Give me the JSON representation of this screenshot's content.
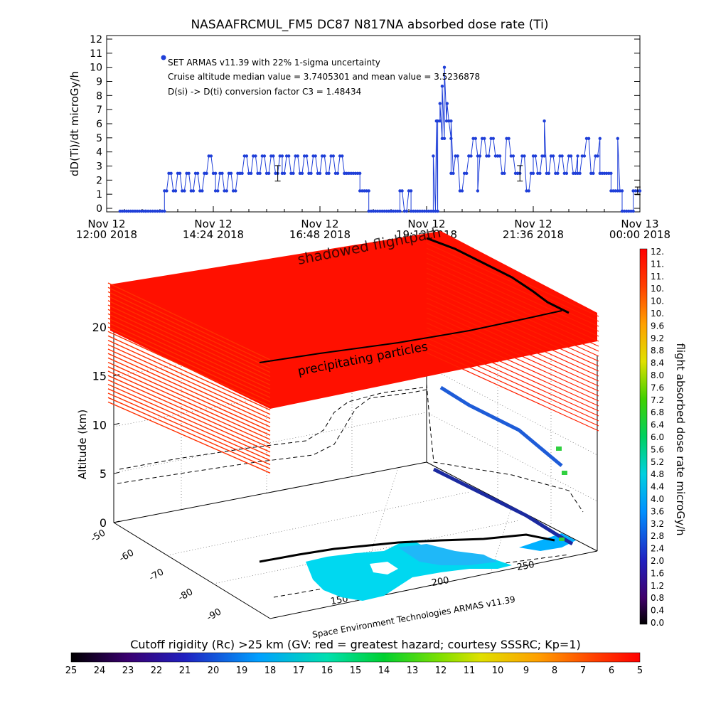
{
  "chart_data": [
    {
      "type": "line",
      "title": "NASAAFRCMUL_FM5 DC87 N817NA absorbed dose rate (Ti)",
      "ylabel": "dD(Ti)/dt microGy/h",
      "ylim": [
        0,
        12
      ],
      "y_ticks": [
        "0",
        "1",
        "2",
        "3",
        "4",
        "5",
        "6",
        "7",
        "8",
        "9",
        "10",
        "11",
        "12"
      ],
      "xlim": [
        12.0,
        24.0
      ],
      "x_ticks": [
        {
          "value": 12.0,
          "line1": "Nov 12",
          "line2": "12:00 2018"
        },
        {
          "value": 14.4,
          "line1": "Nov 12",
          "line2": "14:24 2018"
        },
        {
          "value": 16.8,
          "line1": "Nov 12",
          "line2": "16:48 2018"
        },
        {
          "value": 19.2,
          "line1": "Nov 12",
          "line2": "19:12 2018"
        },
        {
          "value": 21.6,
          "line1": "Nov 12",
          "line2": "21:36 2018"
        },
        {
          "value": 24.0,
          "line1": "Nov 13",
          "line2": "00:00 2018"
        }
      ],
      "annotations": [
        "SET ARMAS v11.39 with 22% 1-sigma uncertainty",
        "Cruise altitude median value = 3.7405301 and mean value = 3.5236878",
        "D(si) -> D(ti) conversion factor C3 = 1.48434"
      ],
      "series": [
        {
          "color": "#1f3fd8",
          "segments": [
            {
              "x0": 12.3,
              "x1": 12.88,
              "levels": [
                -0.2
              ]
            },
            {
              "x0": 12.88,
              "x1": 13.3,
              "levels": [
                -0.2
              ]
            },
            {
              "x0": 13.3,
              "x1": 14.2,
              "levels": [
                1.24,
                2.48
              ]
            },
            {
              "x0": 14.2,
              "x1": 14.45,
              "levels": [
                2.48,
                3.71
              ]
            },
            {
              "x0": 14.45,
              "x1": 15.0,
              "levels": [
                1.24,
                2.48
              ]
            },
            {
              "x0": 15.0,
              "x1": 15.95,
              "levels": [
                2.48,
                3.71
              ]
            },
            {
              "x0": 15.95,
              "x1": 17.35,
              "levels": [
                2.48,
                3.71
              ]
            },
            {
              "x0": 17.35,
              "x1": 17.7,
              "levels": [
                2.48
              ]
            },
            {
              "x0": 17.7,
              "x1": 17.9,
              "levels": [
                1.24
              ]
            },
            {
              "x0": 17.9,
              "x1": 18.6,
              "levels": [
                -0.2
              ]
            },
            {
              "x0": 18.6,
              "x1": 18.85,
              "levels": [
                1.24,
                -0.2
              ]
            },
            {
              "x0": 18.85,
              "x1": 19.45,
              "levels": [
                -0.2
              ]
            },
            {
              "x0": 19.45,
              "x1": 19.75,
              "levels": [
                6.19,
                4.95
              ]
            },
            {
              "x0": 19.75,
              "x1": 20.15,
              "levels": [
                2.48,
                3.71,
                1.24
              ]
            },
            {
              "x0": 20.15,
              "x1": 20.8,
              "levels": [
                3.71,
                4.95
              ]
            },
            {
              "x0": 20.8,
              "x1": 21.25,
              "levels": [
                3.71,
                2.48,
                4.95
              ]
            },
            {
              "x0": 21.25,
              "x1": 21.6,
              "levels": [
                2.48,
                3.71,
                1.24
              ]
            },
            {
              "x0": 21.6,
              "x1": 22.6,
              "levels": [
                3.71,
                2.48
              ]
            },
            {
              "x0": 22.6,
              "x1": 23.1,
              "levels": [
                2.48,
                3.71,
                4.95
              ]
            },
            {
              "x0": 23.1,
              "x1": 23.35,
              "levels": [
                2.48
              ]
            },
            {
              "x0": 23.35,
              "x1": 23.6,
              "levels": [
                1.24
              ]
            },
            {
              "x0": 23.6,
              "x1": 23.85,
              "levels": [
                -0.2
              ]
            },
            {
              "x0": 23.85,
              "x1": 24.0,
              "levels": [
                1.24
              ]
            }
          ],
          "peaks": [
            {
              "x": 19.35,
              "y": 3.71
            },
            {
              "x": 19.42,
              "y": 6.19
            },
            {
              "x": 19.5,
              "y": 7.43
            },
            {
              "x": 19.55,
              "y": 8.66
            },
            {
              "x": 19.6,
              "y": 10.0
            },
            {
              "x": 19.66,
              "y": 7.43
            },
            {
              "x": 19.75,
              "y": 6.19
            },
            {
              "x": 21.85,
              "y": 6.19
            },
            {
              "x": 20.35,
              "y": 1.24
            },
            {
              "x": 23.5,
              "y": 4.95
            },
            {
              "x": 13.55,
              "y": 1.24
            }
          ],
          "error_bars": [
            {
              "x": 15.85,
              "y": 2.48,
              "err": 0.55
            },
            {
              "x": 21.3,
              "y": 2.48,
              "err": 0.55
            },
            {
              "x": 23.95,
              "y": 1.24,
              "err": 0.27
            }
          ]
        }
      ]
    },
    {
      "type": "scatter",
      "title": "",
      "zlabel": "Altitude (km)",
      "z_ticks": [
        "0",
        "5",
        "10",
        "15",
        "20"
      ],
      "zlim": [
        0,
        25
      ],
      "y_ticks": [
        "-50",
        "-60",
        "-70",
        "-80",
        "-90"
      ],
      "x_ticks": [
        "150",
        "200",
        "250"
      ],
      "labels": [
        "shadowed flightpath",
        "precipitating particles"
      ],
      "credit": "Space Environment Technologies ARMAS v11.39",
      "colorbar": {
        "label": "flight absorbed dose rate microGy/h",
        "ticks": [
          "12.",
          "11.",
          "11.",
          "10.",
          "10.",
          "10.",
          "9.6",
          "9.2",
          "8.8",
          "8.4",
          "8.0",
          "7.6",
          "7.2",
          "6.8",
          "6.4",
          "6.0",
          "5.6",
          "5.2",
          "4.8",
          "4.4",
          "4.0",
          "3.6",
          "3.2",
          "2.8",
          "2.4",
          "2.0",
          "1.6",
          "1.2",
          "0.8",
          "0.4",
          "0.0"
        ]
      }
    },
    {
      "type": "heatmap",
      "title": "Cutoff rigidity (Rc) >25 km (GV: red = greatest hazard; courtesy SSSRC; Kp=1)",
      "ticks": [
        "25",
        "24",
        "23",
        "22",
        "21",
        "20",
        "19",
        "18",
        "17",
        "16",
        "15",
        "14",
        "13",
        "12",
        "11",
        "10",
        "9",
        "8",
        "7",
        "6",
        "5"
      ]
    }
  ]
}
